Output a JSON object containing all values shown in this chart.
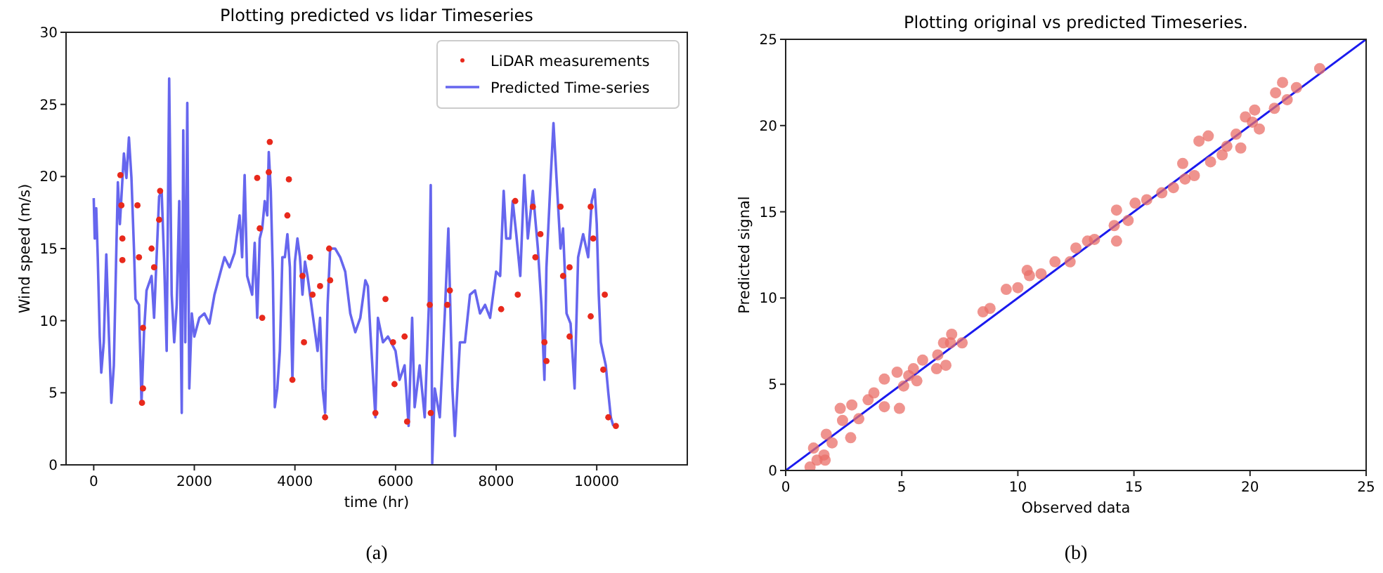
{
  "chart_data": [
    {
      "type": "line",
      "title": "Plotting predicted vs lidar Timeseries",
      "xlabel": "time (hr)",
      "ylabel": "Wind speed (m/s)",
      "xlim": [
        -550,
        11800
      ],
      "ylim": [
        0,
        30
      ],
      "xticks": [
        0,
        2000,
        4000,
        6000,
        8000,
        10000
      ],
      "yticks": [
        0,
        5,
        10,
        15,
        20,
        25,
        30
      ],
      "legend": "top right",
      "annotations": [
        "(a)"
      ],
      "series": [
        {
          "name": "LiDAR measurements",
          "type": "scatter",
          "marker": "circle",
          "color": "#e8291c",
          "x": [
            530,
            550,
            570,
            570,
            870,
            900,
            980,
            980,
            960,
            1150,
            1200,
            1320,
            1300,
            3250,
            3300,
            3350,
            3500,
            3480,
            3880,
            3850,
            3950,
            4150,
            4180,
            4300,
            4350,
            4500,
            4600,
            4680,
            4700,
            5800,
            5950,
            5600,
            6180,
            6230,
            5980,
            6680,
            6700,
            7030,
            7080,
            8100,
            8380,
            8430,
            8730,
            8780,
            8880,
            8960,
            9000,
            9280,
            9330,
            9460,
            9460,
            9880,
            9930,
            9880,
            10160,
            10130,
            10230,
            10380
          ],
          "values": [
            20.1,
            18.0,
            15.7,
            14.2,
            18.0,
            14.4,
            9.5,
            5.3,
            4.3,
            15.0,
            13.7,
            19.0,
            17.0,
            19.9,
            16.4,
            10.2,
            22.4,
            20.3,
            19.8,
            17.3,
            5.9,
            13.1,
            8.5,
            14.4,
            11.8,
            12.4,
            3.3,
            15.0,
            12.8,
            11.5,
            8.5,
            3.6,
            8.9,
            3.0,
            5.6,
            11.1,
            3.6,
            11.1,
            12.1,
            10.8,
            18.3,
            11.8,
            17.9,
            14.4,
            16.0,
            8.5,
            7.2,
            17.9,
            13.1,
            13.7,
            8.9,
            17.9,
            15.7,
            10.3,
            11.8,
            6.6,
            3.3,
            2.7
          ]
        },
        {
          "name": "Predicted Time-series",
          "type": "line",
          "color": "#6666ee",
          "x": [
            0,
            20,
            50,
            80,
            120,
            150,
            200,
            250,
            300,
            350,
            400,
            450,
            480,
            520,
            600,
            650,
            700,
            750,
            800,
            830,
            900,
            950,
            1000,
            1050,
            1150,
            1200,
            1250,
            1300,
            1350,
            1400,
            1450,
            1500,
            1550,
            1600,
            1650,
            1700,
            1750,
            1780,
            1820,
            1860,
            1900,
            1950,
            2000,
            2100,
            2200,
            2300,
            2400,
            2500,
            2600,
            2700,
            2800,
            2900,
            2950,
            3000,
            3050,
            3150,
            3200,
            3250,
            3300,
            3350,
            3400,
            3450,
            3480,
            3520,
            3560,
            3600,
            3650,
            3700,
            3750,
            3800,
            3850,
            3900,
            3950,
            4000,
            4050,
            4100,
            4150,
            4200,
            4250,
            4300,
            4350,
            4400,
            4450,
            4500,
            4550,
            4600,
            4650,
            4700,
            4800,
            4900,
            5000,
            5100,
            5200,
            5300,
            5400,
            5450,
            5500,
            5600,
            5650,
            5750,
            5850,
            6000,
            6080,
            6180,
            6260,
            6330,
            6380,
            6480,
            6580,
            6660,
            6700,
            6730,
            6780,
            6880,
            6980,
            7050,
            7130,
            7180,
            7280,
            7380,
            7480,
            7580,
            7680,
            7780,
            7880,
            8000,
            8080,
            8150,
            8200,
            8280,
            8330,
            8400,
            8480,
            8560,
            8630,
            8730,
            8830,
            8900,
            8960,
            9000,
            9080,
            9140,
            9200,
            9280,
            9330,
            9400,
            9480,
            9560,
            9630,
            9730,
            9830,
            9900,
            9960,
            10000,
            10040,
            10080,
            10180,
            10230,
            10280,
            10330
          ],
          "values": [
            18.5,
            15.7,
            17.8,
            14.4,
            8.9,
            6.4,
            8.5,
            14.6,
            9.2,
            4.3,
            6.9,
            15.0,
            19.6,
            16.7,
            21.6,
            19.9,
            22.7,
            19.9,
            15.0,
            11.5,
            11.1,
            4.3,
            9.2,
            12.1,
            13.1,
            10.2,
            14.4,
            18.6,
            19.0,
            14.1,
            7.9,
            26.8,
            11.8,
            8.5,
            11.1,
            18.3,
            3.6,
            23.2,
            8.5,
            25.1,
            5.3,
            10.5,
            8.9,
            10.2,
            10.5,
            9.8,
            11.8,
            13.1,
            14.4,
            13.7,
            14.7,
            17.3,
            14.4,
            20.1,
            13.1,
            11.8,
            15.4,
            10.2,
            15.7,
            16.4,
            18.3,
            17.3,
            21.7,
            19.0,
            13.4,
            4.0,
            5.3,
            7.9,
            14.4,
            14.4,
            16.0,
            13.7,
            5.9,
            14.1,
            15.7,
            14.4,
            11.8,
            14.1,
            13.1,
            11.8,
            10.5,
            9.2,
            7.9,
            10.2,
            5.3,
            3.6,
            11.1,
            15.0,
            15.0,
            14.4,
            13.4,
            10.5,
            9.2,
            10.2,
            12.8,
            12.4,
            9.2,
            3.3,
            10.2,
            8.5,
            8.9,
            7.9,
            5.9,
            6.9,
            2.7,
            10.2,
            4.0,
            6.9,
            3.3,
            10.8,
            19.4,
            0.1,
            5.3,
            3.3,
            10.5,
            16.4,
            5.3,
            2.0,
            8.5,
            8.5,
            11.8,
            12.1,
            10.5,
            11.1,
            10.2,
            13.4,
            13.1,
            19.0,
            15.7,
            15.7,
            18.3,
            16.0,
            13.1,
            20.1,
            15.7,
            19.0,
            15.0,
            11.1,
            5.9,
            13.7,
            19.6,
            23.7,
            19.9,
            15.0,
            16.4,
            10.5,
            9.8,
            5.3,
            14.4,
            16.0,
            14.4,
            18.3,
            19.1,
            16.7,
            11.8,
            8.5,
            6.9,
            5.0,
            3.3,
            2.7
          ]
        }
      ]
    },
    {
      "type": "scatter",
      "title": "Plotting original vs predicted Timeseries.",
      "xlabel": "Observed data",
      "ylabel": "Predicted signal",
      "xlim": [
        0,
        25
      ],
      "ylim": [
        0,
        25
      ],
      "xticks": [
        0,
        5,
        10,
        15,
        20,
        25
      ],
      "yticks": [
        0,
        5,
        10,
        15,
        20,
        25
      ],
      "annotations": [
        "(b)"
      ],
      "series": [
        {
          "type": "scatter",
          "marker": "circle",
          "color": "#ea6f68",
          "x": [
            1.05,
            1.35,
            1.65,
            1.7,
            1.2,
            1.75,
            2.0,
            2.45,
            2.35,
            2.85,
            2.8,
            3.15,
            3.55,
            3.8,
            4.25,
            4.25,
            4.8,
            4.9,
            5.08,
            5.3,
            5.5,
            5.65,
            5.9,
            6.5,
            6.55,
            6.8,
            7.15,
            7.1,
            7.6,
            6.9,
            8.5,
            8.8,
            9.5,
            10.0,
            10.4,
            10.5,
            11.0,
            11.6,
            12.25,
            12.5,
            13.0,
            13.3,
            14.25,
            14.25,
            14.15,
            14.75,
            15.05,
            15.55,
            16.2,
            16.7,
            17.1,
            17.2,
            17.6,
            17.8,
            18.2,
            18.3,
            18.8,
            19.0,
            19.4,
            19.6,
            19.8,
            20.1,
            20.2,
            20.4,
            21.05,
            21.1,
            21.4,
            21.6,
            22.0,
            23.0
          ],
          "values": [
            0.2,
            0.6,
            0.9,
            0.6,
            1.3,
            2.1,
            1.6,
            2.9,
            3.6,
            3.8,
            1.9,
            3.0,
            4.1,
            4.5,
            5.3,
            3.7,
            5.7,
            3.6,
            4.9,
            5.5,
            5.9,
            5.2,
            6.4,
            5.9,
            6.7,
            7.4,
            7.9,
            7.4,
            7.4,
            6.1,
            9.2,
            9.4,
            10.5,
            10.6,
            11.6,
            11.3,
            11.4,
            12.1,
            12.1,
            12.9,
            13.3,
            13.4,
            15.1,
            13.3,
            14.2,
            14.5,
            15.5,
            15.7,
            16.1,
            16.4,
            17.8,
            16.9,
            17.1,
            19.1,
            19.4,
            17.9,
            18.3,
            18.8,
            19.5,
            18.7,
            20.5,
            20.2,
            20.9,
            19.8,
            21.0,
            21.9,
            22.5,
            21.5,
            22.2,
            23.3
          ]
        },
        {
          "type": "line",
          "color": "#1a1aee",
          "x": [
            0,
            25
          ],
          "values": [
            0,
            25
          ]
        }
      ]
    }
  ]
}
